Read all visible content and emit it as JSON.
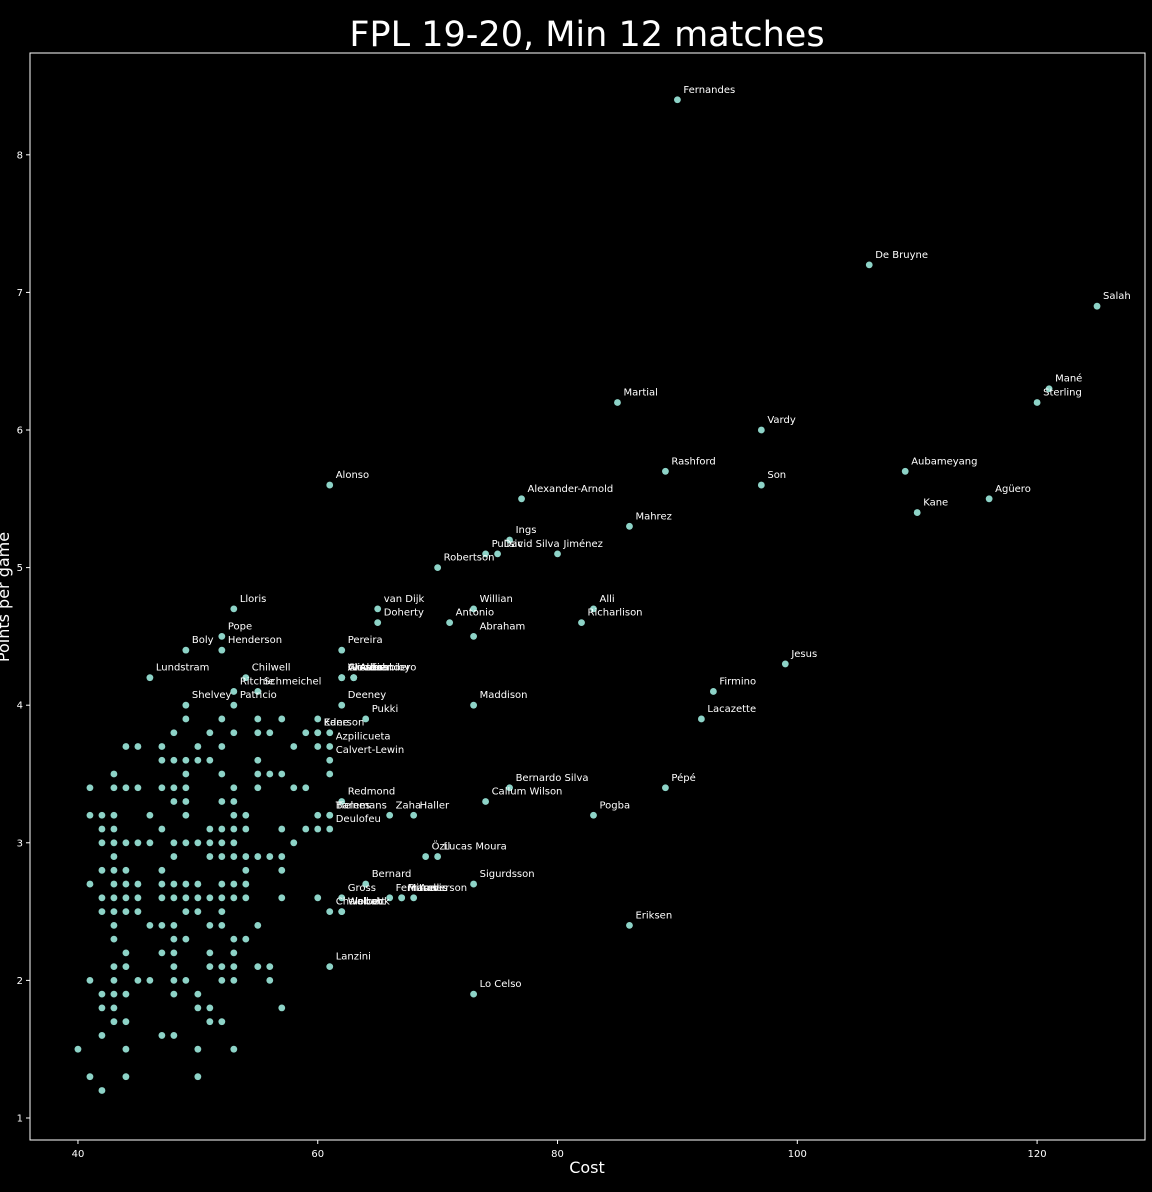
{
  "chart_data": {
    "type": "scatter",
    "title": "FPL 19-20, Min 12 matches",
    "xlabel": "Cost",
    "ylabel": "Points per game",
    "xlim": [
      36,
      129
    ],
    "ylim": [
      0.84,
      8.74
    ],
    "xticks": [
      40,
      60,
      80,
      100,
      120
    ],
    "yticks": [
      1,
      2,
      3,
      4,
      5,
      6,
      7,
      8
    ],
    "grid": false,
    "background": "#000000",
    "point_color": "#8dd3c7",
    "text_color": "#ffffff",
    "labeled_points": [
      {
        "label": "Fernandes",
        "x": 90,
        "y": 8.4
      },
      {
        "label": "De Bruyne",
        "x": 106,
        "y": 7.2
      },
      {
        "label": "Salah",
        "x": 125,
        "y": 6.9
      },
      {
        "label": "Mané",
        "x": 121,
        "y": 6.3
      },
      {
        "label": "Sterling",
        "x": 120,
        "y": 6.2
      },
      {
        "label": "Martial",
        "x": 85,
        "y": 6.2
      },
      {
        "label": "Vardy",
        "x": 97,
        "y": 6.0
      },
      {
        "label": "Rashford",
        "x": 89,
        "y": 5.7
      },
      {
        "label": "Aubameyang",
        "x": 109,
        "y": 5.7
      },
      {
        "label": "Son",
        "x": 97,
        "y": 5.6
      },
      {
        "label": "Alonso",
        "x": 61,
        "y": 5.6
      },
      {
        "label": "Alexander-Arnold",
        "x": 77,
        "y": 5.5
      },
      {
        "label": "Agüero",
        "x": 116,
        "y": 5.5
      },
      {
        "label": "Kane",
        "x": 110,
        "y": 5.4
      },
      {
        "label": "Mahrez",
        "x": 86,
        "y": 5.3
      },
      {
        "label": "Ings",
        "x": 76,
        "y": 5.2
      },
      {
        "label": "Pulisic",
        "x": 74,
        "y": 5.1
      },
      {
        "label": "David Silva",
        "x": 75,
        "y": 5.1
      },
      {
        "label": "Jiménez",
        "x": 80,
        "y": 5.1
      },
      {
        "label": "Robertson",
        "x": 70,
        "y": 5.0
      },
      {
        "label": "Lloris",
        "x": 53,
        "y": 4.7
      },
      {
        "label": "van Dijk",
        "x": 65,
        "y": 4.7
      },
      {
        "label": "Willian",
        "x": 73,
        "y": 4.7
      },
      {
        "label": "Alli",
        "x": 83,
        "y": 4.7
      },
      {
        "label": "Doherty",
        "x": 65,
        "y": 4.6
      },
      {
        "label": "Antonio",
        "x": 71,
        "y": 4.6
      },
      {
        "label": "Richarlison",
        "x": 82,
        "y": 4.6
      },
      {
        "label": "Pope",
        "x": 52,
        "y": 4.5
      },
      {
        "label": "Abraham",
        "x": 73,
        "y": 4.5
      },
      {
        "label": "Boly",
        "x": 49,
        "y": 4.4
      },
      {
        "label": "Henderson",
        "x": 52,
        "y": 4.4
      },
      {
        "label": "Pereira",
        "x": 62,
        "y": 4.4
      },
      {
        "label": "Jesus",
        "x": 99,
        "y": 4.3
      },
      {
        "label": "Lundstram",
        "x": 46,
        "y": 4.2
      },
      {
        "label": "Chilwell",
        "x": 54,
        "y": 4.2
      },
      {
        "label": "Grealish",
        "x": 62,
        "y": 4.2
      },
      {
        "label": "Alisson",
        "x": 62,
        "y": 4.2
      },
      {
        "label": "Wood",
        "x": 62,
        "y": 4.2
      },
      {
        "label": "Adarabioyo",
        "x": 63,
        "y": 4.2
      },
      {
        "label": "Aurier",
        "x": 63,
        "y": 4.2
      },
      {
        "label": "Alexander",
        "x": 63,
        "y": 4.2
      },
      {
        "label": "Ritchie",
        "x": 53,
        "y": 4.1
      },
      {
        "label": "Schmeichel",
        "x": 55,
        "y": 4.1
      },
      {
        "label": "Firmino",
        "x": 93,
        "y": 4.1
      },
      {
        "label": "Shelvey",
        "x": 49,
        "y": 4.0
      },
      {
        "label": "Patricio",
        "x": 53,
        "y": 4.0
      },
      {
        "label": "Deeney",
        "x": 62,
        "y": 4.0
      },
      {
        "label": "Maddison",
        "x": 73,
        "y": 4.0
      },
      {
        "label": "Pukki",
        "x": 64,
        "y": 3.9
      },
      {
        "label": "Lacazette",
        "x": 92,
        "y": 3.9
      },
      {
        "label": "Ederson",
        "x": 60,
        "y": 3.8
      },
      {
        "label": "Kane",
        "x": 60,
        "y": 3.8
      },
      {
        "label": "Azpilicueta",
        "x": 61,
        "y": 3.7
      },
      {
        "label": "Calvert-Lewin",
        "x": 61,
        "y": 3.6
      },
      {
        "label": "Bernardo Silva",
        "x": 76,
        "y": 3.4
      },
      {
        "label": "Pépé",
        "x": 89,
        "y": 3.4
      },
      {
        "label": "Callum Wilson",
        "x": 74,
        "y": 3.3
      },
      {
        "label": "Redmond",
        "x": 62,
        "y": 3.3
      },
      {
        "label": "Barnes",
        "x": 61,
        "y": 3.2
      },
      {
        "label": "Tielemans",
        "x": 61,
        "y": 3.2
      },
      {
        "label": "Zaha",
        "x": 66,
        "y": 3.2
      },
      {
        "label": "Haller",
        "x": 68,
        "y": 3.2
      },
      {
        "label": "Pogba",
        "x": 83,
        "y": 3.2
      },
      {
        "label": "Deulofeu",
        "x": 61,
        "y": 3.1
      },
      {
        "label": "Özil",
        "x": 69,
        "y": 2.9
      },
      {
        "label": "Lucas Moura",
        "x": 70,
        "y": 2.9
      },
      {
        "label": "Bernard",
        "x": 64,
        "y": 2.7
      },
      {
        "label": "Sigurdsson",
        "x": 73,
        "y": 2.7
      },
      {
        "label": "Gross",
        "x": 62,
        "y": 2.6
      },
      {
        "label": "Fernandes",
        "x": 66,
        "y": 2.6
      },
      {
        "label": "Mitrovic",
        "x": 67,
        "y": 2.6
      },
      {
        "label": "Fraser",
        "x": 67,
        "y": 2.6
      },
      {
        "label": "Anderson",
        "x": 68,
        "y": 2.6
      },
      {
        "label": "Chalobah",
        "x": 61,
        "y": 2.5
      },
      {
        "label": "Welbeck",
        "x": 62,
        "y": 2.5
      },
      {
        "label": "Walcott",
        "x": 62,
        "y": 2.5
      },
      {
        "label": "Eriksen",
        "x": 86,
        "y": 2.4
      },
      {
        "label": "Lanzini",
        "x": 61,
        "y": 2.1
      },
      {
        "label": "Lo Celso",
        "x": 73,
        "y": 1.9
      }
    ],
    "unlabeled_points": [
      [
        40,
        1.5
      ],
      [
        41,
        1.3
      ],
      [
        41,
        2.0
      ],
      [
        41,
        2.7
      ],
      [
        41,
        3.2
      ],
      [
        41,
        3.4
      ],
      [
        42,
        1.2
      ],
      [
        42,
        1.6
      ],
      [
        42,
        1.8
      ],
      [
        42,
        1.9
      ],
      [
        42,
        2.5
      ],
      [
        42,
        2.6
      ],
      [
        42,
        2.8
      ],
      [
        42,
        3.0
      ],
      [
        42,
        3.1
      ],
      [
        42,
        3.2
      ],
      [
        43,
        1.7
      ],
      [
        43,
        1.8
      ],
      [
        43,
        1.9
      ],
      [
        43,
        2.0
      ],
      [
        43,
        2.1
      ],
      [
        43,
        2.3
      ],
      [
        43,
        2.4
      ],
      [
        43,
        2.5
      ],
      [
        43,
        2.6
      ],
      [
        43,
        2.7
      ],
      [
        43,
        2.8
      ],
      [
        43,
        2.9
      ],
      [
        43,
        3.0
      ],
      [
        43,
        3.1
      ],
      [
        43,
        3.2
      ],
      [
        43,
        3.4
      ],
      [
        43,
        3.5
      ],
      [
        44,
        1.3
      ],
      [
        44,
        1.5
      ],
      [
        44,
        1.7
      ],
      [
        44,
        1.9
      ],
      [
        44,
        2.1
      ],
      [
        44,
        2.2
      ],
      [
        44,
        2.5
      ],
      [
        44,
        2.6
      ],
      [
        44,
        2.7
      ],
      [
        44,
        2.8
      ],
      [
        44,
        3.0
      ],
      [
        44,
        3.4
      ],
      [
        44,
        3.7
      ],
      [
        45,
        2.0
      ],
      [
        45,
        2.5
      ],
      [
        45,
        2.6
      ],
      [
        45,
        2.7
      ],
      [
        45,
        3.0
      ],
      [
        45,
        3.4
      ],
      [
        45,
        3.7
      ],
      [
        46,
        2.0
      ],
      [
        46,
        2.4
      ],
      [
        46,
        3.0
      ],
      [
        46,
        3.2
      ],
      [
        47,
        1.6
      ],
      [
        47,
        2.2
      ],
      [
        47,
        2.4
      ],
      [
        47,
        2.6
      ],
      [
        47,
        2.7
      ],
      [
        47,
        2.8
      ],
      [
        47,
        3.1
      ],
      [
        47,
        3.4
      ],
      [
        47,
        3.6
      ],
      [
        47,
        3.7
      ],
      [
        48,
        1.6
      ],
      [
        48,
        1.9
      ],
      [
        48,
        2.0
      ],
      [
        48,
        2.1
      ],
      [
        48,
        2.2
      ],
      [
        48,
        2.3
      ],
      [
        48,
        2.4
      ],
      [
        48,
        2.6
      ],
      [
        48,
        2.7
      ],
      [
        48,
        2.9
      ],
      [
        48,
        3.0
      ],
      [
        48,
        3.3
      ],
      [
        48,
        3.4
      ],
      [
        48,
        3.6
      ],
      [
        48,
        3.8
      ],
      [
        49,
        2.0
      ],
      [
        49,
        2.3
      ],
      [
        49,
        2.5
      ],
      [
        49,
        2.6
      ],
      [
        49,
        2.7
      ],
      [
        49,
        3.0
      ],
      [
        49,
        3.2
      ],
      [
        49,
        3.3
      ],
      [
        49,
        3.4
      ],
      [
        49,
        3.5
      ],
      [
        49,
        3.6
      ],
      [
        49,
        3.9
      ],
      [
        50,
        1.3
      ],
      [
        50,
        1.5
      ],
      [
        50,
        1.8
      ],
      [
        50,
        1.9
      ],
      [
        50,
        2.5
      ],
      [
        50,
        2.6
      ],
      [
        50,
        2.7
      ],
      [
        50,
        3.0
      ],
      [
        50,
        3.6
      ],
      [
        50,
        3.7
      ],
      [
        51,
        1.7
      ],
      [
        51,
        1.8
      ],
      [
        51,
        2.1
      ],
      [
        51,
        2.2
      ],
      [
        51,
        2.4
      ],
      [
        51,
        2.6
      ],
      [
        51,
        2.9
      ],
      [
        51,
        3.0
      ],
      [
        51,
        3.1
      ],
      [
        51,
        3.6
      ],
      [
        51,
        3.8
      ],
      [
        52,
        1.7
      ],
      [
        52,
        2.0
      ],
      [
        52,
        2.1
      ],
      [
        52,
        2.4
      ],
      [
        52,
        2.5
      ],
      [
        52,
        2.6
      ],
      [
        52,
        2.7
      ],
      [
        52,
        2.9
      ],
      [
        52,
        3.0
      ],
      [
        52,
        3.1
      ],
      [
        52,
        3.3
      ],
      [
        52,
        3.5
      ],
      [
        52,
        3.7
      ],
      [
        52,
        3.9
      ],
      [
        53,
        1.5
      ],
      [
        53,
        2.0
      ],
      [
        53,
        2.1
      ],
      [
        53,
        2.2
      ],
      [
        53,
        2.3
      ],
      [
        53,
        2.6
      ],
      [
        53,
        2.7
      ],
      [
        53,
        2.9
      ],
      [
        53,
        3.0
      ],
      [
        53,
        3.1
      ],
      [
        53,
        3.2
      ],
      [
        53,
        3.3
      ],
      [
        53,
        3.4
      ],
      [
        53,
        3.8
      ],
      [
        54,
        2.3
      ],
      [
        54,
        2.6
      ],
      [
        54,
        2.7
      ],
      [
        54,
        2.8
      ],
      [
        54,
        2.9
      ],
      [
        54,
        3.1
      ],
      [
        54,
        3.2
      ],
      [
        55,
        2.1
      ],
      [
        55,
        2.4
      ],
      [
        55,
        2.9
      ],
      [
        55,
        3.4
      ],
      [
        55,
        3.5
      ],
      [
        55,
        3.6
      ],
      [
        55,
        3.8
      ],
      [
        55,
        3.9
      ],
      [
        56,
        2.0
      ],
      [
        56,
        2.1
      ],
      [
        56,
        2.9
      ],
      [
        56,
        3.5
      ],
      [
        56,
        3.8
      ],
      [
        57,
        1.8
      ],
      [
        57,
        2.6
      ],
      [
        57,
        2.8
      ],
      [
        57,
        2.9
      ],
      [
        57,
        3.1
      ],
      [
        57,
        3.5
      ],
      [
        57,
        3.9
      ],
      [
        58,
        3.0
      ],
      [
        58,
        3.4
      ],
      [
        58,
        3.7
      ],
      [
        59,
        3.1
      ],
      [
        59,
        3.4
      ],
      [
        59,
        3.8
      ],
      [
        60,
        2.6
      ],
      [
        60,
        3.1
      ],
      [
        60,
        3.2
      ],
      [
        60,
        3.7
      ],
      [
        60,
        3.9
      ],
      [
        61,
        3.5
      ],
      [
        61,
        3.8
      ]
    ]
  }
}
